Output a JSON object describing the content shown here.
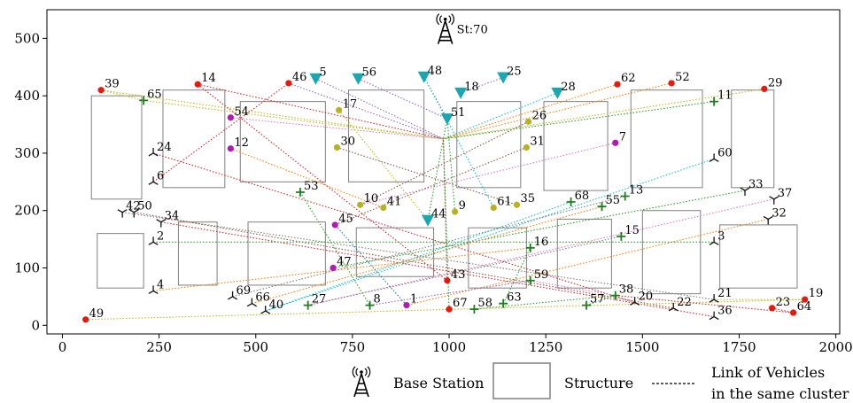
{
  "chart_data": {
    "type": "scatter",
    "xlim": [
      -40,
      2010
    ],
    "ylim": [
      -15,
      550
    ],
    "xticks": [
      0,
      250,
      500,
      750,
      1000,
      1250,
      1500,
      1750,
      2000
    ],
    "yticks": [
      0,
      100,
      200,
      300,
      400,
      500
    ],
    "grid": false,
    "base_station": {
      "x": 990,
      "y": 515,
      "label": "St:70"
    },
    "hub": {
      "x": 985,
      "y": 325
    },
    "structures": [
      {
        "x": [
          75,
          205
        ],
        "y": [
          220,
          400
        ]
      },
      {
        "x": [
          260,
          420
        ],
        "y": [
          240,
          410
        ]
      },
      {
        "x": [
          460,
          680
        ],
        "y": [
          250,
          390
        ]
      },
      {
        "x": [
          740,
          935
        ],
        "y": [
          250,
          410
        ]
      },
      {
        "x": [
          1020,
          1185
        ],
        "y": [
          240,
          390
        ]
      },
      {
        "x": [
          1245,
          1410
        ],
        "y": [
          235,
          390
        ]
      },
      {
        "x": [
          1470,
          1655
        ],
        "y": [
          240,
          410
        ]
      },
      {
        "x": [
          1730,
          1840
        ],
        "y": [
          240,
          410
        ]
      },
      {
        "x": [
          90,
          210
        ],
        "y": [
          65,
          160
        ]
      },
      {
        "x": [
          300,
          400
        ],
        "y": [
          70,
          180
        ]
      },
      {
        "x": [
          480,
          680
        ],
        "y": [
          70,
          180
        ]
      },
      {
        "x": [
          760,
          960
        ],
        "y": [
          85,
          170
        ]
      },
      {
        "x": [
          1050,
          1200
        ],
        "y": [
          65,
          170
        ]
      },
      {
        "x": [
          1280,
          1420
        ],
        "y": [
          65,
          185
        ]
      },
      {
        "x": [
          1500,
          1650
        ],
        "y": [
          55,
          200
        ]
      },
      {
        "x": [
          1700,
          1900
        ],
        "y": [
          65,
          175
        ]
      }
    ],
    "vehicles": [
      {
        "id": "1",
        "x": 890,
        "y": 35,
        "cluster": "purple"
      },
      {
        "id": "2",
        "x": 235,
        "y": 145,
        "cluster": "tri_right"
      },
      {
        "id": "3",
        "x": 1685,
        "y": 145,
        "cluster": "tri_right"
      },
      {
        "id": "4",
        "x": 235,
        "y": 60,
        "cluster": "tri_right"
      },
      {
        "id": "5",
        "x": 655,
        "y": 430,
        "cluster": "cyan"
      },
      {
        "id": "6",
        "x": 235,
        "y": 250,
        "cluster": "tri_right"
      },
      {
        "id": "7",
        "x": 1430,
        "y": 318,
        "cluster": "purple"
      },
      {
        "id": "8",
        "x": 795,
        "y": 35,
        "cluster": "plus"
      },
      {
        "id": "9",
        "x": 1015,
        "y": 198,
        "cluster": "olive"
      },
      {
        "id": "10",
        "x": 770,
        "y": 210,
        "cluster": "olive"
      },
      {
        "id": "11",
        "x": 1685,
        "y": 390,
        "cluster": "plus"
      },
      {
        "id": "12",
        "x": 435,
        "y": 308,
        "cluster": "purple"
      },
      {
        "id": "13",
        "x": 1455,
        "y": 225,
        "cluster": "plus"
      },
      {
        "id": "14",
        "x": 350,
        "y": 420,
        "cluster": "red"
      },
      {
        "id": "15",
        "x": 1445,
        "y": 155,
        "cluster": "plus"
      },
      {
        "id": "16",
        "x": 1210,
        "y": 135,
        "cluster": "plus"
      },
      {
        "id": "17",
        "x": 715,
        "y": 375,
        "cluster": "olive"
      },
      {
        "id": "18",
        "x": 1030,
        "y": 405,
        "cluster": "cyan"
      },
      {
        "id": "19",
        "x": 1920,
        "y": 45,
        "cluster": "red"
      },
      {
        "id": "20",
        "x": 1480,
        "y": 40,
        "cluster": "tri_right"
      },
      {
        "id": "21",
        "x": 1685,
        "y": 45,
        "cluster": "tri_right"
      },
      {
        "id": "22",
        "x": 1580,
        "y": 30,
        "cluster": "tri_right"
      },
      {
        "id": "23",
        "x": 1835,
        "y": 30,
        "cluster": "red"
      },
      {
        "id": "24",
        "x": 235,
        "y": 300,
        "cluster": "tri_right"
      },
      {
        "id": "25",
        "x": 1140,
        "y": 432,
        "cluster": "cyan"
      },
      {
        "id": "26",
        "x": 1205,
        "y": 355,
        "cluster": "olive"
      },
      {
        "id": "27",
        "x": 635,
        "y": 35,
        "cluster": "plus"
      },
      {
        "id": "28",
        "x": 1280,
        "y": 405,
        "cluster": "cyan"
      },
      {
        "id": "29",
        "x": 1815,
        "y": 412,
        "cluster": "red"
      },
      {
        "id": "30",
        "x": 710,
        "y": 310,
        "cluster": "olive"
      },
      {
        "id": "31",
        "x": 1200,
        "y": 310,
        "cluster": "olive"
      },
      {
        "id": "32",
        "x": 1825,
        "y": 185,
        "cluster": "tri_left"
      },
      {
        "id": "33",
        "x": 1765,
        "y": 235,
        "cluster": "tri_left"
      },
      {
        "id": "34",
        "x": 255,
        "y": 180,
        "cluster": "tri_left"
      },
      {
        "id": "35",
        "x": 1175,
        "y": 210,
        "cluster": "olive"
      },
      {
        "id": "36",
        "x": 1685,
        "y": 15,
        "cluster": "tri_right"
      },
      {
        "id": "37",
        "x": 1840,
        "y": 220,
        "cluster": "tri_left"
      },
      {
        "id": "38",
        "x": 1430,
        "y": 52,
        "cluster": "plus"
      },
      {
        "id": "39",
        "x": 100,
        "y": 410,
        "cluster": "red"
      },
      {
        "id": "40",
        "x": 525,
        "y": 25,
        "cluster": "tri_right"
      },
      {
        "id": "41",
        "x": 830,
        "y": 205,
        "cluster": "olive"
      },
      {
        "id": "42",
        "x": 155,
        "y": 197,
        "cluster": "tri_left"
      },
      {
        "id": "43",
        "x": 995,
        "y": 78,
        "cluster": "red"
      },
      {
        "id": "44",
        "x": 945,
        "y": 183,
        "cluster": "cyan"
      },
      {
        "id": "45",
        "x": 705,
        "y": 175,
        "cluster": "purple"
      },
      {
        "id": "46",
        "x": 585,
        "y": 422,
        "cluster": "red"
      },
      {
        "id": "47",
        "x": 700,
        "y": 100,
        "cluster": "purple"
      },
      {
        "id": "48",
        "x": 935,
        "y": 433,
        "cluster": "cyan"
      },
      {
        "id": "49",
        "x": 60,
        "y": 10,
        "cluster": "red"
      },
      {
        "id": "50",
        "x": 185,
        "y": 197,
        "cluster": "tri_left"
      },
      {
        "id": "51",
        "x": 995,
        "y": 360,
        "cluster": "cyan"
      },
      {
        "id": "52",
        "x": 1575,
        "y": 422,
        "cluster": "red"
      },
      {
        "id": "53",
        "x": 615,
        "y": 232,
        "cluster": "plus"
      },
      {
        "id": "54",
        "x": 435,
        "y": 362,
        "cluster": "purple"
      },
      {
        "id": "55",
        "x": 1395,
        "y": 207,
        "cluster": "plus"
      },
      {
        "id": "56",
        "x": 765,
        "y": 430,
        "cluster": "cyan"
      },
      {
        "id": "57",
        "x": 1355,
        "y": 35,
        "cluster": "plus"
      },
      {
        "id": "58",
        "x": 1065,
        "y": 28,
        "cluster": "plus"
      },
      {
        "id": "59",
        "x": 1210,
        "y": 78,
        "cluster": "plus"
      },
      {
        "id": "60",
        "x": 1685,
        "y": 290,
        "cluster": "tri_right"
      },
      {
        "id": "61",
        "x": 1115,
        "y": 205,
        "cluster": "olive"
      },
      {
        "id": "62",
        "x": 1435,
        "y": 420,
        "cluster": "red"
      },
      {
        "id": "63",
        "x": 1140,
        "y": 38,
        "cluster": "plus"
      },
      {
        "id": "64",
        "x": 1890,
        "y": 22,
        "cluster": "red"
      },
      {
        "id": "65",
        "x": 210,
        "y": 392,
        "cluster": "plus"
      },
      {
        "id": "66",
        "x": 490,
        "y": 38,
        "cluster": "tri_right"
      },
      {
        "id": "67",
        "x": 1000,
        "y": 28,
        "cluster": "red"
      },
      {
        "id": "68",
        "x": 1315,
        "y": 215,
        "cluster": "plus"
      },
      {
        "id": "69",
        "x": 440,
        "y": 50,
        "cluster": "tri_right"
      }
    ],
    "links": [
      {
        "from": "39",
        "to": "65",
        "color": "#bcbd22"
      },
      {
        "from": "39",
        "to": "HUB",
        "color": "#bcbd22"
      },
      {
        "from": "65",
        "to": "HUB",
        "color": "#bcbd22"
      },
      {
        "from": "14",
        "to": "43",
        "color": "#d62728"
      },
      {
        "from": "14",
        "to": "HUB",
        "color": "#d62728"
      },
      {
        "from": "46",
        "to": "HUB",
        "color": "#9467bd"
      },
      {
        "from": "5",
        "to": "HUB",
        "color": "#9467bd"
      },
      {
        "from": "56",
        "to": "51",
        "color": "#9467bd"
      },
      {
        "from": "48",
        "to": "51",
        "color": "#9467bd"
      },
      {
        "from": "48",
        "to": "61",
        "color": "#17becf"
      },
      {
        "from": "25",
        "to": "18",
        "color": "#9467bd"
      },
      {
        "from": "28",
        "to": "HUB",
        "color": "#17becf"
      },
      {
        "from": "62",
        "to": "HUB",
        "color": "#ff7f0e"
      },
      {
        "from": "52",
        "to": "HUB",
        "color": "#ff7f0e"
      },
      {
        "from": "29",
        "to": "HUB",
        "color": "#bcbd22"
      },
      {
        "from": "11",
        "to": "HUB",
        "color": "#2ca02c"
      },
      {
        "from": "54",
        "to": "HUB",
        "color": "#e377c2"
      },
      {
        "from": "17",
        "to": "44",
        "color": "#bcbd22"
      },
      {
        "from": "12",
        "to": "41",
        "color": "#ff7f0e"
      },
      {
        "from": "30",
        "to": "35",
        "color": "#8c564b"
      },
      {
        "from": "7",
        "to": "10",
        "color": "#e377c2"
      },
      {
        "from": "26",
        "to": "10",
        "color": "#8c564b"
      },
      {
        "from": "31",
        "to": "45",
        "color": "#8c564b"
      },
      {
        "from": "9",
        "to": "51",
        "color": "#2ca02c"
      },
      {
        "from": "44",
        "to": "51",
        "color": "#2ca02c"
      },
      {
        "from": "60",
        "to": "40",
        "color": "#17becf"
      },
      {
        "from": "33",
        "to": "47",
        "color": "#2ca02c"
      },
      {
        "from": "37",
        "to": "27",
        "color": "#e377c2"
      },
      {
        "from": "32",
        "to": "1",
        "color": "#ff7f0e"
      },
      {
        "from": "24",
        "to": "20",
        "color": "#d62728"
      },
      {
        "from": "6",
        "to": "46",
        "color": "#d62728"
      },
      {
        "from": "53",
        "to": "8",
        "color": "#2ca02c"
      },
      {
        "from": "42",
        "to": "21",
        "color": "#7f7f7f"
      },
      {
        "from": "50",
        "to": "22",
        "color": "#8c564b"
      },
      {
        "from": "34",
        "to": "36",
        "color": "#d62728"
      },
      {
        "from": "2",
        "to": "3",
        "color": "#2ca02c"
      },
      {
        "from": "4",
        "to": "16",
        "color": "#ff7f0e"
      },
      {
        "from": "69",
        "to": "13",
        "color": "#7f7f7f"
      },
      {
        "from": "66",
        "to": "55",
        "color": "#ff7f0e"
      },
      {
        "from": "40",
        "to": "68",
        "color": "#17becf"
      },
      {
        "from": "27",
        "to": "15",
        "color": "#7f7f7f"
      },
      {
        "from": "8",
        "to": "59",
        "color": "#9467bd"
      },
      {
        "from": "1",
        "to": "45",
        "color": "#1f77b4"
      },
      {
        "from": "67",
        "to": "HUB",
        "color": "#2ca02c"
      },
      {
        "from": "43",
        "to": "HUB",
        "color": "#8c564b"
      },
      {
        "from": "58",
        "to": "38",
        "color": "#2ca02c"
      },
      {
        "from": "63",
        "to": "16",
        "color": "#2ca02c"
      },
      {
        "from": "57",
        "to": "38",
        "color": "#2ca02c"
      },
      {
        "from": "49",
        "to": "19",
        "color": "#bcbd22"
      },
      {
        "from": "23",
        "to": "64",
        "color": "#d62728"
      },
      {
        "from": "38",
        "to": "64",
        "color": "#d62728"
      },
      {
        "from": "21",
        "to": "19",
        "color": "#bcbd22"
      },
      {
        "from": "59",
        "to": "38",
        "color": "#e377c2"
      }
    ],
    "colors": {
      "red": "#e8180c",
      "purple": "#b31ab3",
      "olive": "#b5b322",
      "cyan": "#1aa7b0",
      "plus": "#1f7d1f",
      "tri": "#111111",
      "structure_edge": "#808080"
    },
    "legend": {
      "base_station": "Base Station",
      "structure": "Structure",
      "link_line1": "Link of Vehicles",
      "link_line2": "in the same cluster"
    }
  }
}
